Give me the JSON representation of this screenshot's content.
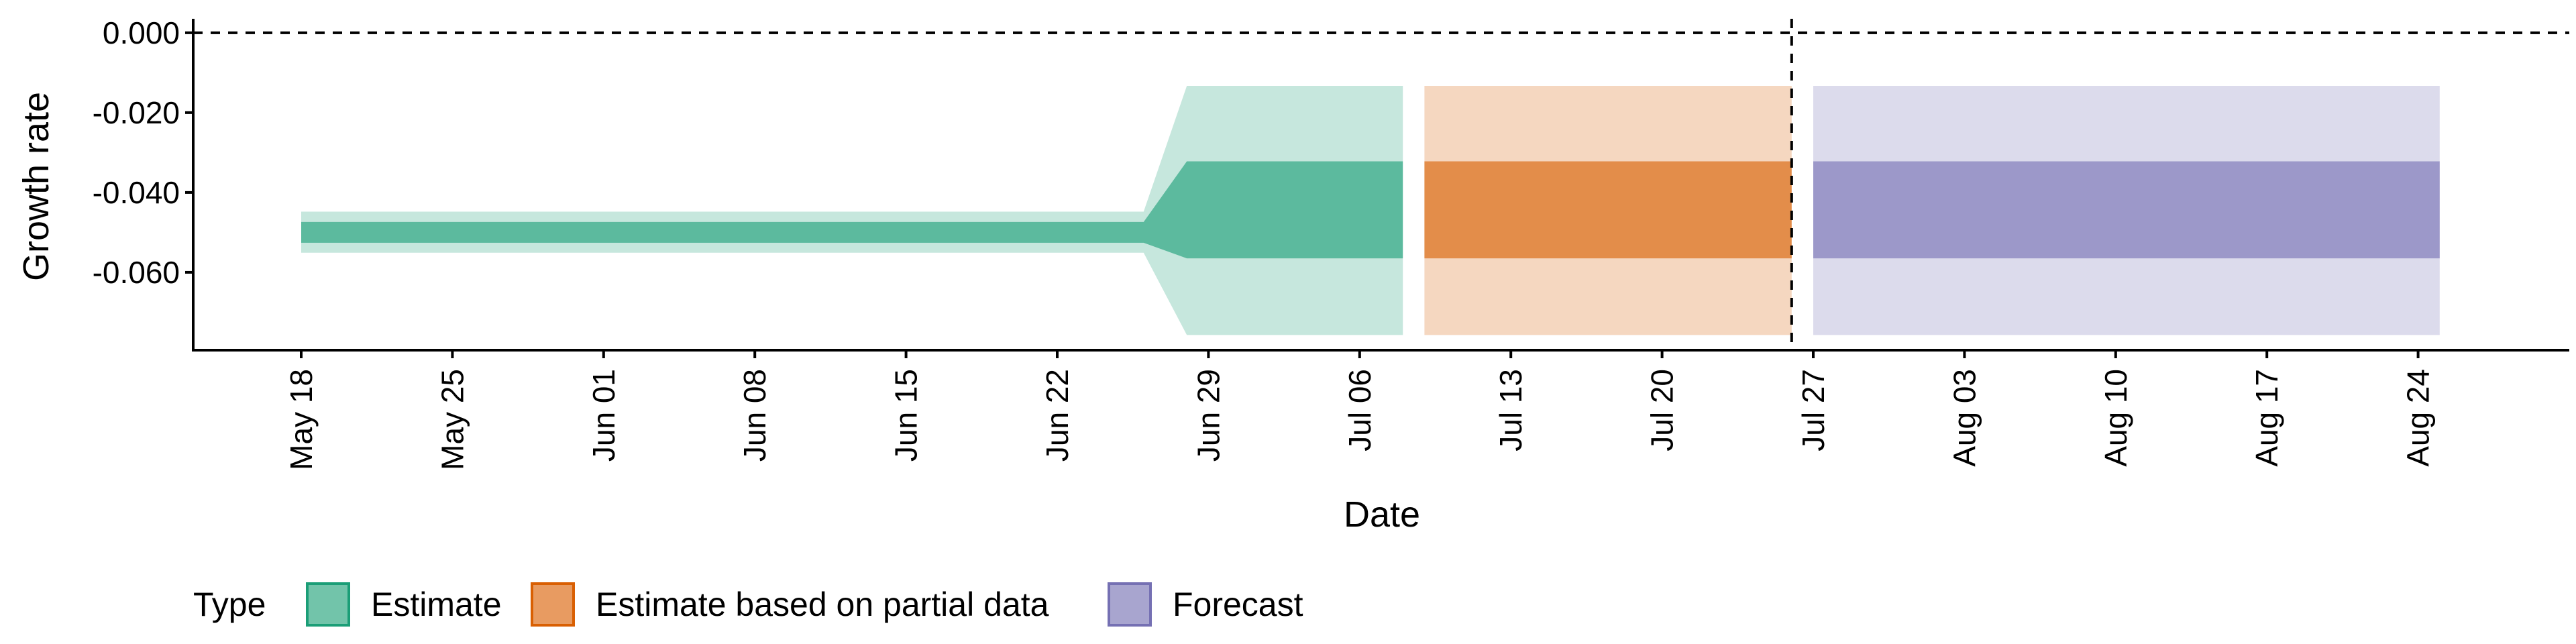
{
  "chart_data": {
    "type": "area",
    "xlabel": "Date",
    "ylabel": "Growth rate",
    "x_ticks": [
      "2024-05-18",
      "2024-05-25",
      "2024-06-01",
      "2024-06-08",
      "2024-06-15",
      "2024-06-22",
      "2024-06-29",
      "2024-07-06",
      "2024-07-13",
      "2024-07-20",
      "2024-07-27",
      "2024-08-03",
      "2024-08-10",
      "2024-08-17",
      "2024-08-24"
    ],
    "x_tick_labels": [
      "May 18",
      "May 25",
      "Jun 01",
      "Jun 08",
      "Jun 15",
      "Jun 22",
      "Jun 29",
      "Jul 06",
      "Jul 13",
      "Jul 20",
      "Jul 27",
      "Aug 03",
      "Aug 10",
      "Aug 17",
      "Aug 24"
    ],
    "xlim": [
      "2024-05-13",
      "2024-08-31"
    ],
    "y_ticks": [
      0.0,
      -0.02,
      -0.04,
      -0.06
    ],
    "y_tick_labels": [
      "0.000",
      "-0.020",
      "-0.040",
      "-0.060"
    ],
    "ylim": [
      -0.0795,
      0.0035
    ],
    "reference_lines": [
      {
        "axis": "y",
        "value": 0.0,
        "style": "dashed"
      },
      {
        "axis": "x",
        "value": "2024-07-26",
        "style": "dashed"
      }
    ],
    "series": [
      {
        "name": "Estimate",
        "color": "#1b9e77",
        "points": [
          {
            "x": "2024-05-18",
            "lower_90": -0.0551,
            "upper_90": -0.0448,
            "lower_50": -0.0526,
            "upper_50": -0.0474
          },
          {
            "x": "2024-06-26",
            "lower_90": -0.0551,
            "upper_90": -0.0448,
            "lower_50": -0.0526,
            "upper_50": -0.0474
          },
          {
            "x": "2024-06-28",
            "lower_90": -0.0757,
            "upper_90": -0.0133,
            "lower_50": -0.0565,
            "upper_50": -0.0322
          },
          {
            "x": "2024-07-08",
            "lower_90": -0.0757,
            "upper_90": -0.0133,
            "lower_50": -0.0565,
            "upper_50": -0.0322
          }
        ]
      },
      {
        "name": "Estimate based on partial data",
        "color": "#d95f02",
        "points": [
          {
            "x": "2024-07-09",
            "lower_90": -0.0757,
            "upper_90": -0.0133,
            "lower_50": -0.0565,
            "upper_50": -0.0322
          },
          {
            "x": "2024-07-26",
            "lower_90": -0.0757,
            "upper_90": -0.0133,
            "lower_50": -0.0565,
            "upper_50": -0.0322
          }
        ]
      },
      {
        "name": "Forecast",
        "color": "#7570b3",
        "points": [
          {
            "x": "2024-07-27",
            "lower_90": -0.0757,
            "upper_90": -0.0133,
            "lower_50": -0.0565,
            "upper_50": -0.0322
          },
          {
            "x": "2024-08-25",
            "lower_90": -0.0757,
            "upper_90": -0.0133,
            "lower_50": -0.0565,
            "upper_50": -0.0322
          }
        ]
      }
    ],
    "legend": {
      "title": "Type",
      "placement": "bottom-left",
      "items": [
        {
          "label": "Estimate",
          "color": "#1b9e77"
        },
        {
          "label": "Estimate based on partial data",
          "color": "#d95f02"
        },
        {
          "label": "Forecast",
          "color": "#7570b3"
        }
      ]
    },
    "grid": false
  }
}
